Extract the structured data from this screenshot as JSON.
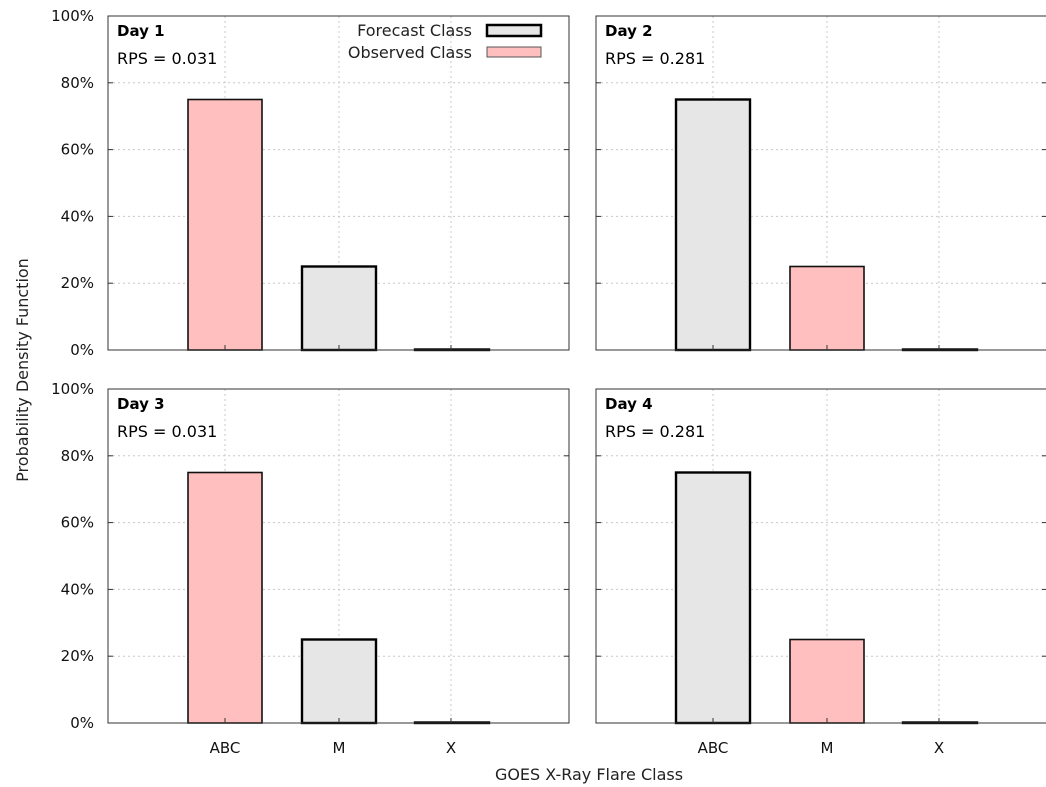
{
  "chart_data": {
    "type": "bar",
    "layout": "2x2 panels, shared axes",
    "xlabel": "GOES X-Ray Flare Class",
    "ylabel": "Probability Density Function",
    "categories": [
      "ABC",
      "M",
      "X"
    ],
    "ylim": [
      0,
      100
    ],
    "yticks": [
      0,
      20,
      40,
      60,
      80,
      100
    ],
    "ytick_labels": [
      "0%",
      "20%",
      "40%",
      "60%",
      "80%",
      "100%"
    ],
    "grid": true,
    "legend": {
      "placement": "top-right of first panel",
      "entries": [
        {
          "label": "Forecast Class",
          "fill": "#e6e6e6",
          "stroke": "#000000",
          "style": "thick-outline"
        },
        {
          "label": "Observed Class",
          "fill": "#ffbfbf",
          "stroke": "#555555",
          "style": "thin-outline"
        }
      ]
    },
    "colors": {
      "forecast": "#e6e6e6",
      "observed": "#ffbfbf"
    },
    "panels": [
      {
        "title": "Day 1",
        "score": "RPS = 0.031",
        "values": [
          75,
          25,
          0
        ],
        "observed_index": 0
      },
      {
        "title": "Day 2",
        "score": "RPS = 0.281",
        "values": [
          75,
          25,
          0
        ],
        "observed_index": 1
      },
      {
        "title": "Day 3",
        "score": "RPS = 0.031",
        "values": [
          75,
          25,
          0
        ],
        "observed_index": 0
      },
      {
        "title": "Day 4",
        "score": "RPS = 0.281",
        "values": [
          75,
          25,
          0
        ],
        "observed_index": 1
      }
    ]
  }
}
